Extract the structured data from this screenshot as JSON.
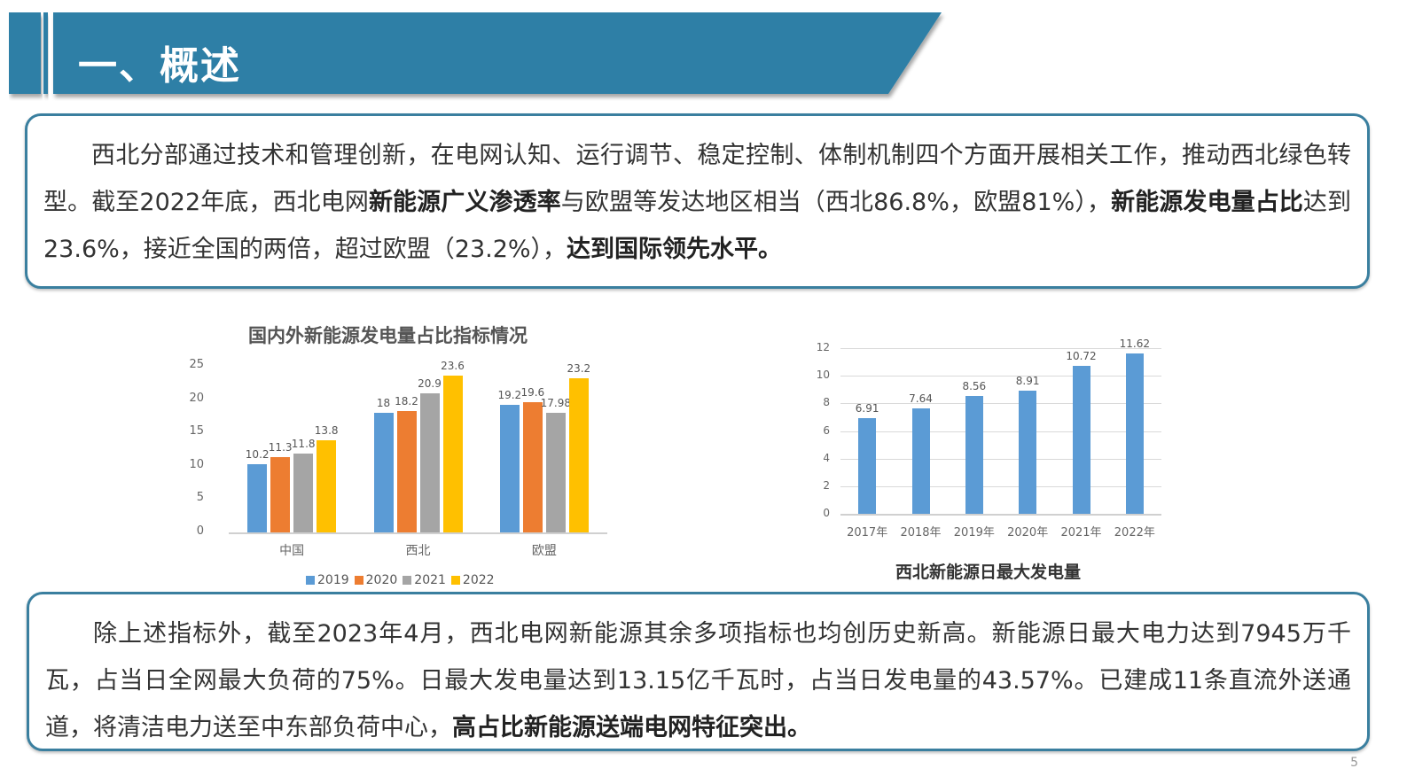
{
  "header": {
    "title": "一、概述",
    "color": "#2f7fa6"
  },
  "box1": {
    "segments": [
      {
        "text": "西北分部通过技术和管理创新，在电网认知、运行调节、稳定控制、体制机制四个方面开展相关工作，推动西北绿色转型。截至2022年底，西北电网",
        "bold": false
      },
      {
        "text": "新能源广义渗透率",
        "bold": true
      },
      {
        "text": "与欧盟等发达地区相当（西北86.8%，欧盟81%），",
        "bold": false
      },
      {
        "text": "新能源发电量占比",
        "bold": true
      },
      {
        "text": "达到23.6%，接近全国的两倍，超过欧盟（23.2%），",
        "bold": false
      },
      {
        "text": "达到国际领先水平。",
        "bold": true
      }
    ]
  },
  "box2": {
    "segments": [
      {
        "text": "除上述指标外，截至2023年4月，西北电网新能源其余多项指标也均创历史新高。新能源日最大电力达到7945万千瓦，占当日全网最大负荷的75%。日最大发电量达到13.15亿千瓦时，占当日发电量的43.57%。已建成11条直流外送通道，将清洁电力送至中东部负荷中心，",
        "bold": false
      },
      {
        "text": "高占比新能源送端电网特征突出。",
        "bold": true
      }
    ]
  },
  "page_number": "5",
  "chart_data": [
    {
      "type": "bar",
      "title": "国内外新能源发电量占比指标情况",
      "categories": [
        "中国",
        "西北",
        "欧盟"
      ],
      "series": [
        {
          "name": "2019",
          "color": "#5b9bd5",
          "values": [
            10.2,
            18,
            19.2
          ]
        },
        {
          "name": "2020",
          "color": "#ed7d31",
          "values": [
            11.3,
            18.2,
            19.6
          ]
        },
        {
          "name": "2021",
          "color": "#a5a5a5",
          "values": [
            11.8,
            20.9,
            17.98
          ]
        },
        {
          "name": "2022",
          "color": "#ffc000",
          "values": [
            13.8,
            23.6,
            23.2
          ]
        }
      ],
      "yticks": [
        0,
        5,
        10,
        15,
        20,
        25
      ],
      "ylim": [
        0,
        25
      ],
      "xlabel": "",
      "ylabel": "",
      "grid": false,
      "legend_position": "bottom"
    },
    {
      "type": "bar",
      "title": "西北新能源日最大发电量",
      "categories": [
        "2017年",
        "2018年",
        "2019年",
        "2020年",
        "2021年",
        "2022年"
      ],
      "values": [
        6.91,
        7.64,
        8.56,
        8.91,
        10.72,
        11.62
      ],
      "color": "#5b9bd5",
      "yticks": [
        0,
        2,
        4,
        6,
        8,
        10,
        12
      ],
      "ylim": [
        0,
        12
      ],
      "xlabel": "",
      "ylabel": "",
      "grid": true,
      "legend_position": "none"
    }
  ]
}
